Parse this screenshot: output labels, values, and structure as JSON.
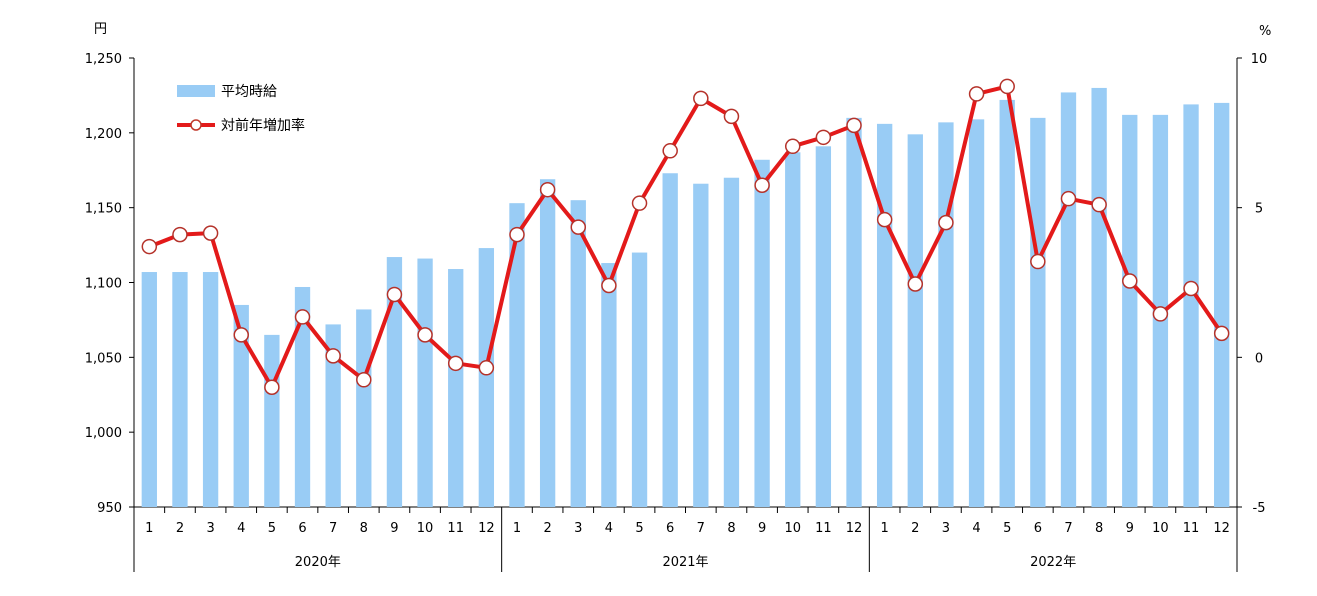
{
  "chart_data": {
    "type": "bar+line",
    "left_unit": "円",
    "right_unit": "%",
    "left_axis": {
      "min": 950,
      "max": 1250,
      "ticks": [
        "1,250",
        "1,200",
        "1,150",
        "1,100",
        "1,050",
        "1,000",
        "950"
      ],
      "tick_values": [
        1250,
        1200,
        1150,
        1100,
        1050,
        1000,
        950
      ]
    },
    "right_axis": {
      "min": -5,
      "max": 10,
      "ticks": [
        "10",
        "5",
        "0",
        "-5"
      ],
      "tick_values": [
        10,
        5,
        0,
        -5
      ]
    },
    "months": [
      "1",
      "2",
      "3",
      "4",
      "5",
      "6",
      "7",
      "8",
      "9",
      "10",
      "11",
      "12",
      "1",
      "2",
      "3",
      "4",
      "5",
      "6",
      "7",
      "8",
      "9",
      "10",
      "11",
      "12",
      "1",
      "2",
      "3",
      "4",
      "5",
      "6",
      "7",
      "8",
      "9",
      "10",
      "11",
      "12"
    ],
    "years": [
      "2020年",
      "2021年",
      "2022年"
    ],
    "series": [
      {
        "name": "平均時給",
        "kind": "bar",
        "axis": "left",
        "color": "#99ccf5",
        "values": [
          1107,
          1107,
          1107,
          1085,
          1065,
          1097,
          1072,
          1082,
          1117,
          1116,
          1109,
          1123,
          1153,
          1169,
          1155,
          1113,
          1120,
          1173,
          1166,
          1170,
          1182,
          1187,
          1191,
          1210,
          1206,
          1199,
          1207,
          1209,
          1222,
          1210,
          1227,
          1230,
          1212,
          1212,
          1219,
          1220
        ]
      },
      {
        "name": "対前年増加率",
        "kind": "line",
        "axis": "right",
        "color": "#e31a1a",
        "values": [
          3.7,
          4.1,
          4.15,
          0.75,
          -1.0,
          1.35,
          0.05,
          -0.75,
          2.1,
          0.75,
          -0.2,
          -0.35,
          4.1,
          5.6,
          4.35,
          2.4,
          5.15,
          6.9,
          8.65,
          8.05,
          5.75,
          7.05,
          7.35,
          7.75,
          4.6,
          2.45,
          4.5,
          8.8,
          9.05,
          3.2,
          5.3,
          5.1,
          2.55,
          1.45,
          2.3,
          0.8
        ]
      }
    ],
    "legend_position": "top-left"
  }
}
